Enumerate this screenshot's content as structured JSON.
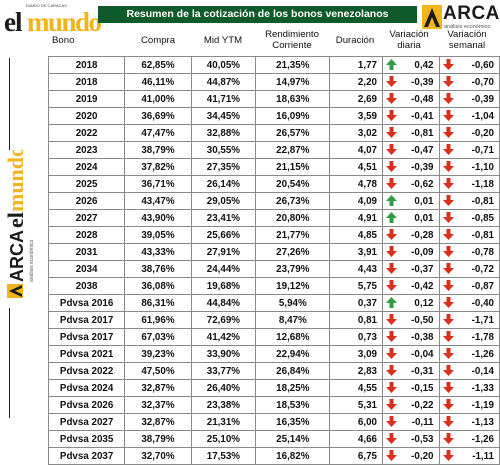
{
  "header": {
    "logo_small": "DIARIO DE CARACAS",
    "logo_el": "el",
    "logo_mundo": "mundo",
    "title": "Resumen de la cotización de los bonos venezolanos",
    "arca_word": "ARCA",
    "arca_sub": "análisis económico"
  },
  "columns": {
    "bono": "Bono",
    "compra": "Compra",
    "mid_ytm": "Mid YTM",
    "rendimiento": "Rendimiento Corriente",
    "duracion": "Duración",
    "var_diaria": "Variación diaria",
    "var_semanal": "Variación semanal"
  },
  "rows": [
    {
      "bono": "2018",
      "compra": "62,85%",
      "mid": "40,05%",
      "rend": "21,35%",
      "dur": "1,77",
      "vd": "0,42",
      "vd_dir": "up",
      "vs": "-0,60",
      "vs_dir": "down"
    },
    {
      "bono": "2018",
      "compra": "46,11%",
      "mid": "44,87%",
      "rend": "14,97%",
      "dur": "2,20",
      "vd": "-0,39",
      "vd_dir": "down",
      "vs": "-0,70",
      "vs_dir": "down"
    },
    {
      "bono": "2019",
      "compra": "41,00%",
      "mid": "41,71%",
      "rend": "18,63%",
      "dur": "2,69",
      "vd": "-0,48",
      "vd_dir": "down",
      "vs": "-0,39",
      "vs_dir": "down"
    },
    {
      "bono": "2020",
      "compra": "36,69%",
      "mid": "34,45%",
      "rend": "16,09%",
      "dur": "3,59",
      "vd": "-0,41",
      "vd_dir": "down",
      "vs": "-1,04",
      "vs_dir": "down"
    },
    {
      "bono": "2022",
      "compra": "47,47%",
      "mid": "32,88%",
      "rend": "26,57%",
      "dur": "3,02",
      "vd": "-0,81",
      "vd_dir": "down",
      "vs": "-0,20",
      "vs_dir": "down"
    },
    {
      "bono": "2023",
      "compra": "38,79%",
      "mid": "30,55%",
      "rend": "22,87%",
      "dur": "4,07",
      "vd": "-0,47",
      "vd_dir": "down",
      "vs": "-0,71",
      "vs_dir": "down"
    },
    {
      "bono": "2024",
      "compra": "37,82%",
      "mid": "27,35%",
      "rend": "21,15%",
      "dur": "4,51",
      "vd": "-0,39",
      "vd_dir": "down",
      "vs": "-1,10",
      "vs_dir": "down"
    },
    {
      "bono": "2025",
      "compra": "36,71%",
      "mid": "26,14%",
      "rend": "20,54%",
      "dur": "4,78",
      "vd": "-0,62",
      "vd_dir": "down",
      "vs": "-1,18",
      "vs_dir": "down"
    },
    {
      "bono": "2026",
      "compra": "43,47%",
      "mid": "29,05%",
      "rend": "26,73%",
      "dur": "4,09",
      "vd": "0,01",
      "vd_dir": "up",
      "vs": "-0,81",
      "vs_dir": "down"
    },
    {
      "bono": "2027",
      "compra": "43,90%",
      "mid": "23,41%",
      "rend": "20,80%",
      "dur": "4,91",
      "vd": "0,01",
      "vd_dir": "up",
      "vs": "-0,85",
      "vs_dir": "down"
    },
    {
      "bono": "2028",
      "compra": "39,05%",
      "mid": "25,66%",
      "rend": "21,77%",
      "dur": "4,85",
      "vd": "-0,28",
      "vd_dir": "down",
      "vs": "-0,81",
      "vs_dir": "down"
    },
    {
      "bono": "2031",
      "compra": "43,33%",
      "mid": "27,91%",
      "rend": "27,26%",
      "dur": "3,91",
      "vd": "-0,09",
      "vd_dir": "down",
      "vs": "-0,78",
      "vs_dir": "down"
    },
    {
      "bono": "2034",
      "compra": "38,76%",
      "mid": "24,44%",
      "rend": "23,79%",
      "dur": "4,43",
      "vd": "-0,37",
      "vd_dir": "down",
      "vs": "-0,72",
      "vs_dir": "down"
    },
    {
      "bono": "2038",
      "compra": "36,08%",
      "mid": "19,68%",
      "rend": "19,12%",
      "dur": "5,75",
      "vd": "-0,42",
      "vd_dir": "down",
      "vs": "-0,87",
      "vs_dir": "down"
    },
    {
      "bono": "Pdvsa 2016",
      "compra": "86,31%",
      "mid": "44,84%",
      "rend": "5,94%",
      "dur": "0,37",
      "vd": "0,12",
      "vd_dir": "up",
      "vs": "-0,40",
      "vs_dir": "down"
    },
    {
      "bono": "Pdvsa 2017",
      "compra": "61,96%",
      "mid": "72,69%",
      "rend": "8,47%",
      "dur": "0,81",
      "vd": "-0,50",
      "vd_dir": "down",
      "vs": "-1,71",
      "vs_dir": "down"
    },
    {
      "bono": "Pdvsa 2017",
      "compra": "67,03%",
      "mid": "41,42%",
      "rend": "12,68%",
      "dur": "0,73",
      "vd": "-0,38",
      "vd_dir": "down",
      "vs": "-1,78",
      "vs_dir": "down"
    },
    {
      "bono": "Pdvsa 2021",
      "compra": "39,23%",
      "mid": "33,90%",
      "rend": "22,94%",
      "dur": "3,09",
      "vd": "-0,04",
      "vd_dir": "down",
      "vs": "-1,26",
      "vs_dir": "down"
    },
    {
      "bono": "Pdvsa 2022",
      "compra": "47,50%",
      "mid": "33,77%",
      "rend": "26,84%",
      "dur": "2,83",
      "vd": "-0,31",
      "vd_dir": "down",
      "vs": "-0,14",
      "vs_dir": "down"
    },
    {
      "bono": "Pdvsa 2024",
      "compra": "32,87%",
      "mid": "26,40%",
      "rend": "18,25%",
      "dur": "4,55",
      "vd": "-0,15",
      "vd_dir": "down",
      "vs": "-1,33",
      "vs_dir": "down"
    },
    {
      "bono": "Pdvsa 2026",
      "compra": "32,37%",
      "mid": "23,38%",
      "rend": "18,53%",
      "dur": "5,31",
      "vd": "-0,22",
      "vd_dir": "down",
      "vs": "-1,19",
      "vs_dir": "down"
    },
    {
      "bono": "Pdvsa 2027",
      "compra": "32,87%",
      "mid": "21,31%",
      "rend": "16,35%",
      "dur": "6,00",
      "vd": "-0,11",
      "vd_dir": "down",
      "vs": "-1,13",
      "vs_dir": "down"
    },
    {
      "bono": "Pdvsa 2035",
      "compra": "38,79%",
      "mid": "25,10%",
      "rend": "25,14%",
      "dur": "4,66",
      "vd": "-0,53",
      "vd_dir": "down",
      "vs": "-1,26",
      "vs_dir": "down"
    },
    {
      "bono": "Pdvsa 2037",
      "compra": "32,70%",
      "mid": "17,53%",
      "rend": "16,82%",
      "dur": "6,75",
      "vd": "-0,20",
      "vd_dir": "down",
      "vs": "-1,11",
      "vs_dir": "down"
    }
  ],
  "colors": {
    "title_bg": "#0f5a2a",
    "up_arrow": "#2f9e3f",
    "down_arrow": "#d9301e",
    "mundo_gold": "#f2b41b"
  }
}
